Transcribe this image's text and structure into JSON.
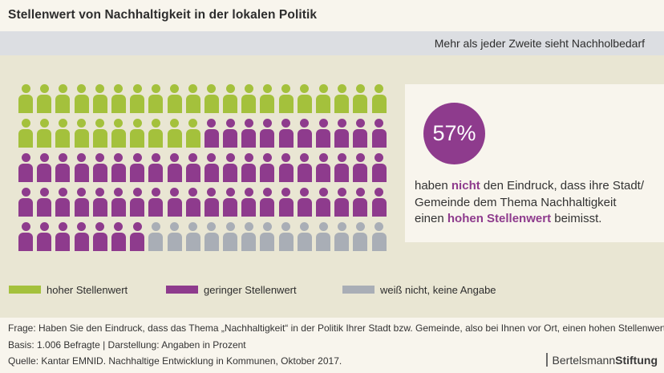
{
  "header": {
    "title": "Stellenwert von Nachhaltigkeit in der lokalen Politik"
  },
  "band": {
    "subtitle": "Mehr als jeder Zweite sieht Nachholbedarf"
  },
  "colors": {
    "green": "#a4c13c",
    "purple": "#8e3b8d",
    "gray": "#a9aeb6",
    "cream": "#f8f5ed",
    "beige": "#e9e6d3",
    "band_gray": "#dcdee2",
    "text_dark": "#333333"
  },
  "chart_data": {
    "type": "pictogram",
    "title": "Stellenwert von Nachhaltigkeit in der lokalen Politik",
    "unit": "Prozent",
    "total_icons": 100,
    "grid": {
      "rows": 5,
      "cols": 20
    },
    "series": [
      {
        "name": "hoher Stellenwert",
        "value": 30,
        "color_key": "green"
      },
      {
        "name": "geringer Stellenwert",
        "value": 57,
        "color_key": "purple"
      },
      {
        "name": "weiß nicht, keine Angabe",
        "value": 13,
        "color_key": "gray"
      }
    ],
    "legend_position": "bottom"
  },
  "highlight": {
    "value": "57%",
    "segments": [
      {
        "t": "haben ",
        "em": false
      },
      {
        "t": "nicht",
        "em": true
      },
      {
        "t": " den Eindruck, dass ihre Stadt/\nGemeinde dem Thema Nachhaltigkeit\neinen ",
        "em": false
      },
      {
        "t": "hohen Stellenwert",
        "em": true
      },
      {
        "t": " beimisst.",
        "em": false
      }
    ]
  },
  "legend": {
    "items": [
      {
        "label": "hoher Stellenwert",
        "color_key": "green"
      },
      {
        "label": "geringer Stellenwert",
        "color_key": "purple"
      },
      {
        "label": "weiß nicht, keine Angabe",
        "color_key": "gray"
      }
    ]
  },
  "footer": {
    "question": "Frage: Haben Sie den Eindruck, dass das Thema „Nachhaltigkeit“ in der Politik Ihrer Stadt bzw. Gemeinde, also bei Ihnen vor Ort, einen hohen Stellenwert hat?",
    "basis": "Basis: 1.006 Befragte | Darstellung: Angaben in Prozent",
    "source": "Quelle: Kantar EMNID. Nachhaltige Entwicklung in Kommunen, Oktober 2017.",
    "logo": {
      "name_regular": "Bertelsmann",
      "name_bold": "Stiftung"
    }
  }
}
